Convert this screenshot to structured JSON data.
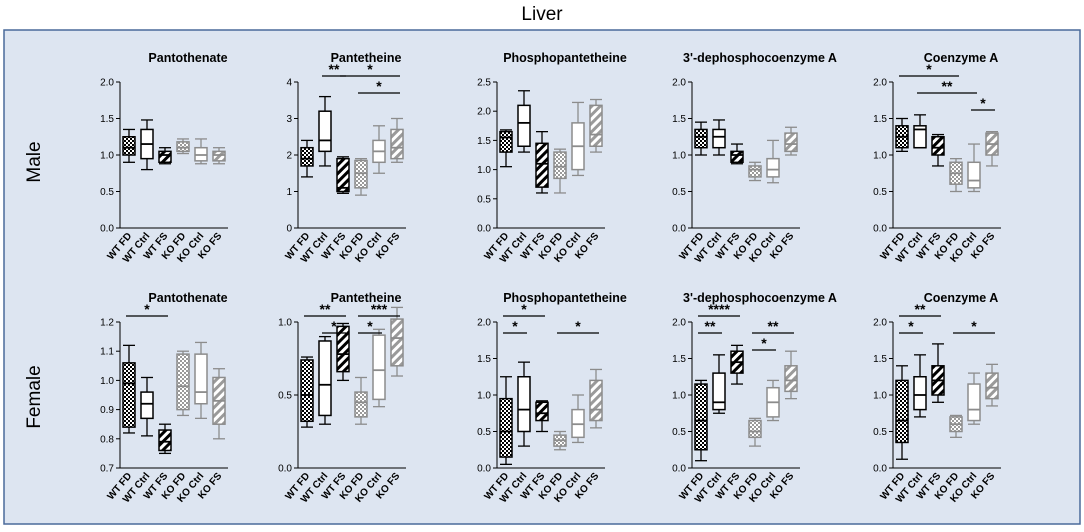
{
  "title": "Liver",
  "row_labels": [
    "Male",
    "Female"
  ],
  "colors": {
    "panel_bg": "#dde5f1",
    "panel_border": "#4a6a9a",
    "wt": "#000000",
    "ko": "#8c8c8c",
    "grid": "#000000"
  },
  "groups": [
    "WT FD",
    "WT Ctrl",
    "WT FS",
    "KO FD",
    "KO Ctrl",
    "KO FS"
  ],
  "fills": [
    "checker",
    "open",
    "hatch",
    "checker",
    "open",
    "hatch"
  ],
  "chart_data": [
    {
      "type": "box",
      "row": "Male",
      "title": "Pantothenate",
      "ylim": [
        0,
        2
      ],
      "yticks": [
        0,
        0.5,
        1,
        1.5,
        2
      ],
      "ytick_labels": [
        "0.0",
        "0.5",
        "1.0",
        "1.5",
        "2.0"
      ],
      "boxes": [
        {
          "min": 0.9,
          "q1": 1.0,
          "med": 1.1,
          "q3": 1.25,
          "max": 1.35
        },
        {
          "min": 0.8,
          "q1": 0.95,
          "med": 1.15,
          "q3": 1.35,
          "max": 1.48
        },
        {
          "min": 0.88,
          "q1": 0.9,
          "med": 1.0,
          "q3": 1.05,
          "max": 1.1
        },
        {
          "min": 1.02,
          "q1": 1.05,
          "med": 1.1,
          "q3": 1.18,
          "max": 1.22
        },
        {
          "min": 0.88,
          "q1": 0.92,
          "med": 1.0,
          "q3": 1.1,
          "max": 1.22
        },
        {
          "min": 0.88,
          "q1": 0.92,
          "med": 1.0,
          "q3": 1.05,
          "max": 1.1
        }
      ],
      "sig": []
    },
    {
      "type": "box",
      "row": "Male",
      "title": "Pantetheine",
      "ylim": [
        0,
        4
      ],
      "yticks": [
        0,
        1,
        2,
        3,
        4
      ],
      "ytick_labels": [
        "0",
        "1",
        "2",
        "3",
        "4"
      ],
      "boxes": [
        {
          "min": 1.4,
          "q1": 1.7,
          "med": 1.9,
          "q3": 2.2,
          "max": 2.4
        },
        {
          "min": 1.7,
          "q1": 2.1,
          "med": 2.4,
          "q3": 3.2,
          "max": 3.6
        },
        {
          "min": 0.95,
          "q1": 1.0,
          "med": 1.1,
          "q3": 1.9,
          "max": 1.95
        },
        {
          "min": 0.9,
          "q1": 1.1,
          "med": 1.5,
          "q3": 1.85,
          "max": 1.9
        },
        {
          "min": 1.5,
          "q1": 1.8,
          "med": 2.1,
          "q3": 2.4,
          "max": 2.8
        },
        {
          "min": 1.8,
          "q1": 1.9,
          "med": 2.2,
          "q3": 2.7,
          "max": 3.0
        }
      ],
      "sig": [
        {
          "from": 1,
          "to": 2,
          "level": 0,
          "label": "**"
        },
        {
          "from": 2,
          "to": 5,
          "level": 0,
          "label": "*"
        },
        {
          "from": 3,
          "to": 5,
          "level": 1,
          "label": "*"
        }
      ]
    },
    {
      "type": "box",
      "row": "Male",
      "title": "Phosphopantetheine",
      "ylim": [
        0,
        2.5
      ],
      "yticks": [
        0,
        0.5,
        1,
        1.5,
        2,
        2.5
      ],
      "ytick_labels": [
        "0.0",
        "0.5",
        "1.0",
        "1.5",
        "2.0",
        "2.5"
      ],
      "boxes": [
        {
          "min": 1.05,
          "q1": 1.3,
          "med": 1.55,
          "q3": 1.65,
          "max": 1.68
        },
        {
          "min": 1.3,
          "q1": 1.4,
          "med": 1.8,
          "q3": 2.1,
          "max": 2.35
        },
        {
          "min": 0.6,
          "q1": 0.7,
          "med": 1.1,
          "q3": 1.45,
          "max": 1.65
        },
        {
          "min": 0.6,
          "q1": 0.85,
          "med": 1.05,
          "q3": 1.3,
          "max": 1.35
        },
        {
          "min": 0.9,
          "q1": 1.0,
          "med": 1.4,
          "q3": 1.8,
          "max": 2.15
        },
        {
          "min": 1.3,
          "q1": 1.4,
          "med": 1.6,
          "q3": 2.1,
          "max": 2.2
        }
      ],
      "sig": []
    },
    {
      "type": "box",
      "row": "Male",
      "title": "3'-dephosphocoenzyme A",
      "ylim": [
        0,
        2
      ],
      "yticks": [
        0,
        0.5,
        1,
        1.5,
        2
      ],
      "ytick_labels": [
        "0.0",
        "0.5",
        "1.0",
        "1.5",
        "2.0"
      ],
      "boxes": [
        {
          "min": 1.0,
          "q1": 1.1,
          "med": 1.25,
          "q3": 1.35,
          "max": 1.45
        },
        {
          "min": 1.0,
          "q1": 1.1,
          "med": 1.25,
          "q3": 1.35,
          "max": 1.48
        },
        {
          "min": 0.88,
          "q1": 0.9,
          "med": 1.0,
          "q3": 1.05,
          "max": 1.15
        },
        {
          "min": 0.65,
          "q1": 0.7,
          "med": 0.8,
          "q3": 0.85,
          "max": 0.9
        },
        {
          "min": 0.62,
          "q1": 0.7,
          "med": 0.8,
          "q3": 0.95,
          "max": 1.2
        },
        {
          "min": 1.0,
          "q1": 1.05,
          "med": 1.15,
          "q3": 1.3,
          "max": 1.38
        }
      ],
      "sig": []
    },
    {
      "type": "box",
      "row": "Male",
      "title": "Coenzyme A",
      "ylim": [
        0,
        2
      ],
      "yticks": [
        0,
        0.5,
        1,
        1.5,
        2
      ],
      "ytick_labels": [
        "0.0",
        "0.5",
        "1.0",
        "1.5",
        "2.0"
      ],
      "boxes": [
        {
          "min": 1.05,
          "q1": 1.1,
          "med": 1.25,
          "q3": 1.4,
          "max": 1.5
        },
        {
          "min": 1.1,
          "q1": 1.1,
          "med": 1.35,
          "q3": 1.4,
          "max": 1.55
        },
        {
          "min": 0.85,
          "q1": 1.0,
          "med": 1.1,
          "q3": 1.25,
          "max": 1.28
        },
        {
          "min": 0.5,
          "q1": 0.6,
          "med": 0.75,
          "q3": 0.9,
          "max": 0.95
        },
        {
          "min": 0.5,
          "q1": 0.55,
          "med": 0.65,
          "q3": 0.9,
          "max": 1.15
        },
        {
          "min": 0.85,
          "q1": 1.0,
          "med": 1.15,
          "q3": 1.3,
          "max": 1.32
        }
      ],
      "sig": [
        {
          "from": 0,
          "to": 3,
          "level": 0,
          "label": "*"
        },
        {
          "from": 1,
          "to": 4,
          "level": 1,
          "label": "**"
        },
        {
          "from": 4,
          "to": 5,
          "level": 2,
          "label": "*"
        }
      ]
    },
    {
      "type": "box",
      "row": "Female",
      "title": "Pantothenate",
      "ylim": [
        0.7,
        1.2
      ],
      "yticks": [
        0.7,
        0.8,
        0.9,
        1.0,
        1.1,
        1.2
      ],
      "ytick_labels": [
        "0.7",
        "0.8",
        "0.9",
        "1.0",
        "1.1",
        "1.2"
      ],
      "boxes": [
        {
          "min": 0.82,
          "q1": 0.84,
          "med": 0.99,
          "q3": 1.06,
          "max": 1.12
        },
        {
          "min": 0.81,
          "q1": 0.87,
          "med": 0.92,
          "q3": 0.96,
          "max": 1.01
        },
        {
          "min": 0.75,
          "q1": 0.76,
          "med": 0.79,
          "q3": 0.83,
          "max": 0.85
        },
        {
          "min": 0.88,
          "q1": 0.9,
          "med": 0.98,
          "q3": 1.09,
          "max": 1.1
        },
        {
          "min": 0.87,
          "q1": 0.92,
          "med": 0.96,
          "q3": 1.09,
          "max": 1.13
        },
        {
          "min": 0.8,
          "q1": 0.85,
          "med": 0.93,
          "q3": 1.01,
          "max": 1.04
        }
      ],
      "sig": [
        {
          "from": 0,
          "to": 2,
          "level": 0,
          "label": "*"
        }
      ]
    },
    {
      "type": "box",
      "row": "Female",
      "title": "Pantetheine",
      "ylim": [
        0,
        1
      ],
      "yticks": [
        0,
        0.5,
        1
      ],
      "ytick_labels": [
        "0.0",
        "0.5",
        "1.0"
      ],
      "boxes": [
        {
          "min": 0.28,
          "q1": 0.32,
          "med": 0.5,
          "q3": 0.74,
          "max": 0.76
        },
        {
          "min": 0.3,
          "q1": 0.36,
          "med": 0.57,
          "q3": 0.87,
          "max": 0.9
        },
        {
          "min": 0.6,
          "q1": 0.66,
          "med": 0.78,
          "q3": 0.97,
          "max": 0.99
        },
        {
          "min": 0.3,
          "q1": 0.35,
          "med": 0.45,
          "q3": 0.52,
          "max": 0.62
        },
        {
          "min": 0.42,
          "q1": 0.47,
          "med": 0.67,
          "q3": 0.91,
          "max": 0.95
        },
        {
          "min": 0.63,
          "q1": 0.7,
          "med": 0.89,
          "q3": 1.02,
          "max": 1.1
        }
      ],
      "sig": [
        {
          "from": 0,
          "to": 2,
          "level": 0,
          "label": "**"
        },
        {
          "from": 1,
          "to": 2,
          "level": 1,
          "label": "*"
        },
        {
          "from": 3,
          "to": 5,
          "level": 0,
          "label": "***"
        },
        {
          "from": 3,
          "to": 4,
          "level": 1,
          "label": "*"
        }
      ]
    },
    {
      "type": "box",
      "row": "Female",
      "title": "Phosphopantetheine",
      "ylim": [
        0,
        2
      ],
      "yticks": [
        0,
        0.5,
        1,
        1.5,
        2
      ],
      "ytick_labels": [
        "0.0",
        "0.5",
        "1.0",
        "1.5",
        "2.0"
      ],
      "boxes": [
        {
          "min": 0.05,
          "q1": 0.15,
          "med": 0.5,
          "q3": 0.95,
          "max": 1.25
        },
        {
          "min": 0.3,
          "q1": 0.5,
          "med": 0.8,
          "q3": 1.25,
          "max": 1.45
        },
        {
          "min": 0.5,
          "q1": 0.65,
          "med": 0.75,
          "q3": 0.9,
          "max": 0.92
        },
        {
          "min": 0.25,
          "q1": 0.3,
          "med": 0.38,
          "q3": 0.45,
          "max": 0.5
        },
        {
          "min": 0.35,
          "q1": 0.42,
          "med": 0.6,
          "q3": 0.8,
          "max": 1.0
        },
        {
          "min": 0.55,
          "q1": 0.65,
          "med": 0.8,
          "q3": 1.2,
          "max": 1.35
        }
      ],
      "sig": [
        {
          "from": 0,
          "to": 2,
          "level": 0,
          "label": "*"
        },
        {
          "from": 0,
          "to": 1,
          "level": 1,
          "label": "*"
        },
        {
          "from": 3,
          "to": 5,
          "level": 1,
          "label": "*"
        }
      ]
    },
    {
      "type": "box",
      "row": "Female",
      "title": "3'-dephosphocoenzyme A",
      "ylim": [
        0,
        2
      ],
      "yticks": [
        0,
        0.5,
        1,
        1.5,
        2
      ],
      "ytick_labels": [
        "0.0",
        "0.5",
        "1.0",
        "1.5",
        "2.0"
      ],
      "boxes": [
        {
          "min": 0.1,
          "q1": 0.25,
          "med": 0.65,
          "q3": 1.15,
          "max": 1.2
        },
        {
          "min": 0.75,
          "q1": 0.8,
          "med": 0.9,
          "q3": 1.3,
          "max": 1.55
        },
        {
          "min": 1.15,
          "q1": 1.3,
          "med": 1.45,
          "q3": 1.6,
          "max": 1.68
        },
        {
          "min": 0.3,
          "q1": 0.42,
          "med": 0.5,
          "q3": 0.65,
          "max": 0.68
        },
        {
          "min": 0.65,
          "q1": 0.7,
          "med": 0.9,
          "q3": 1.1,
          "max": 1.2
        },
        {
          "min": 0.95,
          "q1": 1.05,
          "med": 1.2,
          "q3": 1.4,
          "max": 1.6
        }
      ],
      "sig": [
        {
          "from": 0,
          "to": 2,
          "level": 0,
          "label": "****"
        },
        {
          "from": 0,
          "to": 1,
          "level": 1,
          "label": "**"
        },
        {
          "from": 3,
          "to": 5,
          "level": 1,
          "label": "**"
        },
        {
          "from": 3,
          "to": 4,
          "level": 2,
          "label": "*"
        }
      ]
    },
    {
      "type": "box",
      "row": "Female",
      "title": "Coenzyme A",
      "ylim": [
        0,
        2
      ],
      "yticks": [
        0,
        0.5,
        1,
        1.5,
        2
      ],
      "ytick_labels": [
        "0.0",
        "0.5",
        "1.0",
        "1.5",
        "2.0"
      ],
      "boxes": [
        {
          "min": 0.12,
          "q1": 0.35,
          "med": 0.65,
          "q3": 1.2,
          "max": 1.4
        },
        {
          "min": 0.7,
          "q1": 0.8,
          "med": 1.0,
          "q3": 1.25,
          "max": 1.55
        },
        {
          "min": 0.9,
          "q1": 1.0,
          "med": 1.2,
          "q3": 1.4,
          "max": 1.7
        },
        {
          "min": 0.42,
          "q1": 0.5,
          "med": 0.6,
          "q3": 0.7,
          "max": 0.72
        },
        {
          "min": 0.6,
          "q1": 0.65,
          "med": 0.8,
          "q3": 1.15,
          "max": 1.3
        },
        {
          "min": 0.85,
          "q1": 0.95,
          "med": 1.1,
          "q3": 1.3,
          "max": 1.42
        }
      ],
      "sig": [
        {
          "from": 0,
          "to": 2,
          "level": 0,
          "label": "**"
        },
        {
          "from": 0,
          "to": 1,
          "level": 1,
          "label": "*"
        },
        {
          "from": 3,
          "to": 5,
          "level": 1,
          "label": "*"
        }
      ]
    }
  ]
}
